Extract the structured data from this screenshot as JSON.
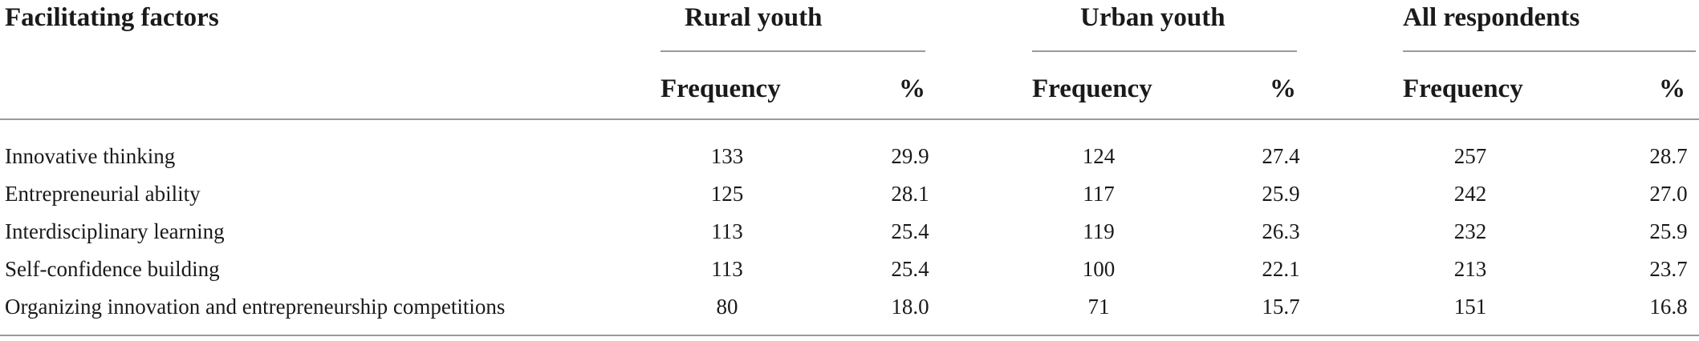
{
  "table": {
    "headers": {
      "row_label": "Facilitating factors",
      "groups": [
        "Rural youth",
        "Urban youth",
        "All respondents"
      ],
      "subheaders": {
        "frequency": "Frequency",
        "percent": "%"
      }
    },
    "rows": [
      {
        "label": "Innovative thinking",
        "values": [
          "133",
          "29.9",
          "124",
          "27.4",
          "257",
          "28.7"
        ]
      },
      {
        "label": "Entrepreneurial ability",
        "values": [
          "125",
          "28.1",
          "117",
          "25.9",
          "242",
          "27.0"
        ]
      },
      {
        "label": "Interdisciplinary learning",
        "values": [
          "113",
          "25.4",
          "119",
          "26.3",
          "232",
          "25.9"
        ]
      },
      {
        "label": "Self-confidence building",
        "values": [
          "113",
          "25.4",
          "100",
          "22.1",
          "213",
          "23.7"
        ]
      },
      {
        "label": "Organizing innovation and entrepreneurship competitions",
        "values": [
          "80",
          "18.0",
          "71",
          "15.7",
          "151",
          "16.8"
        ]
      }
    ]
  }
}
